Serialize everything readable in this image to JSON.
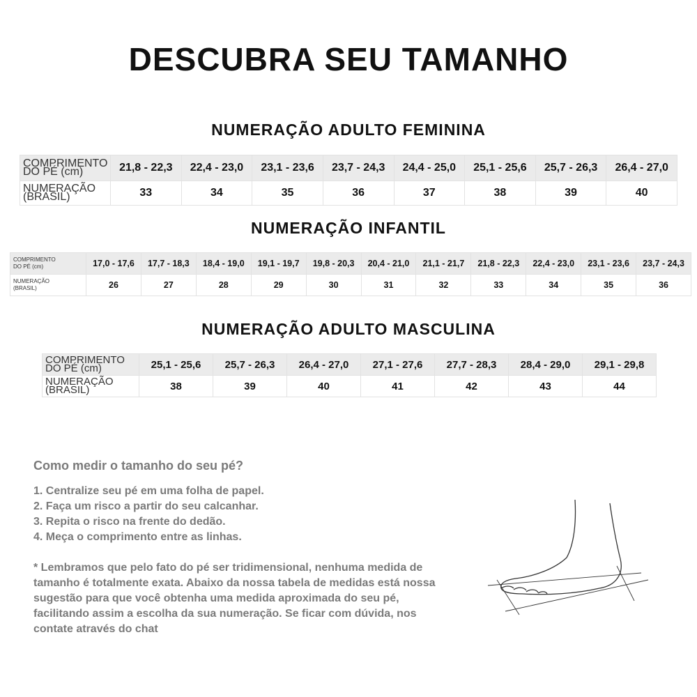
{
  "title": "DESCUBRA SEU TAMANHO",
  "row_labels": {
    "length": [
      "COMPRIMENTO",
      "DO PÉ (cm)"
    ],
    "size": [
      "NUMERAÇÃO",
      "(BRASIL)"
    ]
  },
  "tables": [
    {
      "title": "NUMERAÇÃO ADULTO FEMININA",
      "lengths": [
        "21,8 - 22,3",
        "22,4 - 23,0",
        "23,1 - 23,6",
        "23,7 - 24,3",
        "24,4 - 25,0",
        "25,1 - 25,6",
        "25,7 - 26,3",
        "26,4 - 27,0"
      ],
      "sizes": [
        "33",
        "34",
        "35",
        "36",
        "37",
        "38",
        "39",
        "40"
      ]
    },
    {
      "title": "NUMERAÇÃO INFANTIL",
      "lengths": [
        "17,0 - 17,6",
        "17,7 - 18,3",
        "18,4 - 19,0",
        "19,1 - 19,7",
        "19,8 - 20,3",
        "20,4 - 21,0",
        "21,1 - 21,7",
        "21,8 - 22,3",
        "22,4 - 23,0",
        "23,1 - 23,6",
        "23,7 - 24,3"
      ],
      "sizes": [
        "26",
        "27",
        "28",
        "29",
        "30",
        "31",
        "32",
        "33",
        "34",
        "35",
        "36"
      ]
    },
    {
      "title": "NUMERAÇÃO ADULTO MASCULINA",
      "lengths": [
        "25,1 - 25,6",
        "25,7 - 26,3",
        "26,4 - 27,0",
        "27,1 - 27,6",
        "27,7 - 28,3",
        "28,4 - 29,0",
        "29,1 - 29,8"
      ],
      "sizes": [
        "38",
        "39",
        "40",
        "41",
        "42",
        "43",
        "44"
      ]
    }
  ],
  "how_to": {
    "heading": "Como medir o tamanho do seu pé?",
    "steps": [
      "1. Centralize seu pé em uma folha de papel.",
      "2. Faça um risco a partir do seu calcanhar.",
      "3. Repita o risco na frente do dedão.",
      "4. Meça o comprimento entre as linhas."
    ],
    "note": "* Lembramos que pelo fato do pé ser tridimensional, nenhuma medida de tamanho é totalmente exata. Abaixo da nossa tabela de medidas está nossa sugestão para que você obtenha uma medida aproximada do seu pé, facilitando assim a escolha da sua numeração. Se ficar com dúvida, nos contate através do chat"
  }
}
